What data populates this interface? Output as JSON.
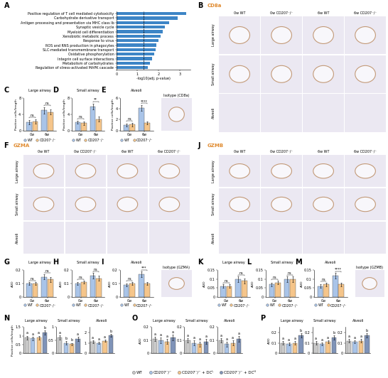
{
  "chart_data": [
    {
      "type": "bar",
      "panel": "A",
      "orientation": "horizontal",
      "categories": [
        "Positive regulation of T cell mediated cytotoxicity",
        "Carbohydrate derivative transport",
        "Antigen processing and presentation via MHC class Ib",
        "Synaptic vesicle cycle",
        "Myeloid cell differentiation",
        "Xenobiotic metabolic process",
        "Response to virus",
        "ROS and RNS production in phagocytes",
        "SLC-mediated transmembrane transport",
        "Oxidative phosphorylation",
        "Integrin cell surface interactions",
        "Metabolism of carbohydrates",
        "Regulation of stress-activated MAPK cascade"
      ],
      "values": [
        3.3,
        2.9,
        2.5,
        2.3,
        2.2,
        2.1,
        2.0,
        1.9,
        1.85,
        1.8,
        1.7,
        1.6,
        1.5
      ],
      "color": "#3d85c6",
      "x_label": "-log10(adj. p-value)",
      "xlim": [
        0,
        3.5
      ],
      "xticks": [
        0,
        1,
        2,
        3
      ],
      "reference_line": 1.3,
      "grid": false
    },
    {
      "type": "bar",
      "panel": "C",
      "title": "Large airway",
      "y_label": "Positive cells/length",
      "categories": [
        "0w",
        "6w"
      ],
      "series": [
        {
          "name": "WT",
          "color": "#a9c4e8",
          "values": [
            2.0,
            5.0
          ],
          "errors": [
            0.5,
            0.8
          ]
        },
        {
          "name": "CD207⁻/⁻",
          "color": "#f5c58a",
          "values": [
            2.2,
            4.6
          ],
          "errors": [
            0.6,
            0.7
          ]
        }
      ],
      "ylim": [
        0,
        8
      ],
      "yticks": [
        0,
        4,
        8
      ],
      "annotations": [
        "ns",
        "ns"
      ],
      "legend": "bottom",
      "grid": false
    },
    {
      "type": "bar",
      "panel": "D",
      "title": "Small airway",
      "y_label": "Positive cells/length",
      "categories": [
        "0w",
        "6w"
      ],
      "series": [
        {
          "name": "WT",
          "color": "#a9c4e8",
          "values": [
            2.0,
            6.0
          ],
          "errors": [
            0.4,
            0.7
          ]
        },
        {
          "name": "CD207⁻/⁻",
          "color": "#f5c58a",
          "values": [
            1.8,
            2.8
          ],
          "errors": [
            0.4,
            0.6
          ]
        }
      ],
      "ylim": [
        0,
        8
      ],
      "yticks": [
        0,
        4,
        8
      ],
      "annotations": [
        "ns",
        "**"
      ],
      "legend": "bottom",
      "grid": false
    },
    {
      "type": "bar",
      "panel": "E",
      "title": "Alveoli",
      "y_label": "Positive cells/length",
      "categories": [
        "0w",
        "6w"
      ],
      "series": [
        {
          "name": "WT",
          "color": "#a9c4e8",
          "values": [
            1.0,
            4.2
          ],
          "errors": [
            0.3,
            0.5
          ]
        },
        {
          "name": "CD207⁻/⁻",
          "color": "#f5c58a",
          "values": [
            1.1,
            1.4
          ],
          "errors": [
            0.3,
            0.3
          ]
        }
      ],
      "ylim": [
        0,
        6
      ],
      "yticks": [
        0,
        2,
        4,
        6
      ],
      "annotations": [
        "ns",
        "****"
      ],
      "legend": "bottom",
      "grid": false
    },
    {
      "type": "bar",
      "panel": "G",
      "title": "Large airway",
      "y_label": "AOD",
      "categories": [
        "0w",
        "6w"
      ],
      "series": [
        {
          "name": "WT",
          "color": "#a9c4e8",
          "values": [
            0.1,
            0.15
          ],
          "errors": [
            0.01,
            0.02
          ]
        },
        {
          "name": "CD207⁻/⁻",
          "color": "#f5c58a",
          "values": [
            0.1,
            0.13
          ],
          "errors": [
            0.01,
            0.02
          ]
        }
      ],
      "ylim": [
        0,
        0.2
      ],
      "yticks": [
        0,
        0.1,
        0.2
      ],
      "annotations": [
        "ns",
        "ns"
      ],
      "legend": "bottom",
      "grid": false
    },
    {
      "type": "bar",
      "panel": "H",
      "title": "Small airway",
      "y_label": "AOD",
      "categories": [
        "0w",
        "6w"
      ],
      "series": [
        {
          "name": "WT",
          "color": "#a9c4e8",
          "values": [
            0.1,
            0.16
          ],
          "errors": [
            0.01,
            0.02
          ]
        },
        {
          "name": "CD207⁻/⁻",
          "color": "#f5c58a",
          "values": [
            0.11,
            0.14
          ],
          "errors": [
            0.01,
            0.02
          ]
        }
      ],
      "ylim": [
        0,
        0.2
      ],
      "yticks": [
        0,
        0.1,
        0.2
      ],
      "annotations": [
        "ns",
        "ns"
      ],
      "legend": "bottom",
      "grid": false
    },
    {
      "type": "bar",
      "panel": "I",
      "title": "Alveoli",
      "y_label": "AOD",
      "categories": [
        "0w",
        "6w"
      ],
      "series": [
        {
          "name": "WT",
          "color": "#a9c4e8",
          "values": [
            0.09,
            0.17
          ],
          "errors": [
            0.01,
            0.02
          ]
        },
        {
          "name": "CD207⁻/⁻",
          "color": "#f5c58a",
          "values": [
            0.1,
            0.1
          ],
          "errors": [
            0.01,
            0.01
          ]
        }
      ],
      "ylim": [
        0,
        0.2
      ],
      "yticks": [
        0,
        0.1,
        0.2
      ],
      "annotations": [
        "ns",
        "***"
      ],
      "legend": "bottom",
      "grid": false
    },
    {
      "type": "bar",
      "panel": "K",
      "title": "Large airway",
      "y_label": "AOD",
      "categories": [
        "0w",
        "6w"
      ],
      "series": [
        {
          "name": "WT",
          "color": "#a9c4e8",
          "values": [
            0.06,
            0.1
          ],
          "errors": [
            0.01,
            0.015
          ]
        },
        {
          "name": "CD207⁻/⁻",
          "color": "#f5c58a",
          "values": [
            0.06,
            0.09
          ],
          "errors": [
            0.01,
            0.015
          ]
        }
      ],
      "ylim": [
        0,
        0.15
      ],
      "yticks": [
        0,
        0.05,
        0.1,
        0.15
      ],
      "annotations": [
        "ns",
        "ns"
      ],
      "legend": "bottom",
      "grid": false
    },
    {
      "type": "bar",
      "panel": "L",
      "title": "Small airway",
      "y_label": "AOD",
      "categories": [
        "0w",
        "6w"
      ],
      "series": [
        {
          "name": "WT",
          "color": "#a9c4e8",
          "values": [
            0.07,
            0.1
          ],
          "errors": [
            0.01,
            0.015
          ]
        },
        {
          "name": "CD207⁻/⁻",
          "color": "#f5c58a",
          "values": [
            0.08,
            0.1
          ],
          "errors": [
            0.01,
            0.015
          ]
        }
      ],
      "ylim": [
        0,
        0.15
      ],
      "yticks": [
        0,
        0.05,
        0.1,
        0.15
      ],
      "annotations": [
        "ns",
        "ns"
      ],
      "legend": "bottom",
      "grid": false
    },
    {
      "type": "bar",
      "panel": "M",
      "title": "Alveoli",
      "y_label": "AOD",
      "categories": [
        "0w",
        "6w"
      ],
      "series": [
        {
          "name": "WT",
          "color": "#a9c4e8",
          "values": [
            0.06,
            0.12
          ],
          "errors": [
            0.01,
            0.015
          ]
        },
        {
          "name": "CD207⁻/⁻",
          "color": "#f5c58a",
          "values": [
            0.07,
            0.07
          ],
          "errors": [
            0.01,
            0.01
          ]
        }
      ],
      "ylim": [
        0,
        0.15
      ],
      "yticks": [
        0,
        0.05,
        0.1,
        0.15
      ],
      "annotations": [
        "ns",
        "****"
      ],
      "legend": "bottom",
      "grid": false
    },
    {
      "type": "bar",
      "panel": "N",
      "title": "Large airway",
      "y_label": "Positive cells/length",
      "tick_labels": "y",
      "series": [
        {
          "name": "WT",
          "color": "#c8c8c8",
          "values": [
            0.9
          ],
          "errors": [
            0.1
          ]
        },
        {
          "name": "CD207⁻/⁻",
          "color": "#a9c4e8",
          "values": [
            0.85
          ],
          "errors": [
            0.1
          ]
        },
        {
          "name": "CD207⁻/⁻ + DCᴸ",
          "color": "#f5c58a",
          "values": [
            0.9
          ],
          "errors": [
            0.1
          ]
        },
        {
          "name": "CD207⁻/⁻ + DCᴴ",
          "color": "#7f93b8",
          "values": [
            1.2
          ],
          "errors": [
            0.12
          ]
        }
      ],
      "ylim": [
        0,
        1.5
      ],
      "yticks": [
        0,
        0.5,
        1,
        1.5
      ],
      "annotations": [
        "a",
        "a",
        "a",
        "b"
      ],
      "legend": "bottom",
      "grid": false
    },
    {
      "type": "bar",
      "title": "Small airway",
      "tick_labels": "y",
      "series": [
        {
          "name": "WT",
          "color": "#c8c8c8",
          "values": [
            0.6
          ],
          "errors": [
            0.08
          ]
        },
        {
          "name": "CD207⁻/⁻",
          "color": "#a9c4e8",
          "values": [
            0.4
          ],
          "errors": [
            0.06
          ]
        },
        {
          "name": "CD207⁻/⁻ + DCᴸ",
          "color": "#f5c58a",
          "values": [
            0.35
          ],
          "errors": [
            0.05
          ]
        },
        {
          "name": "CD207⁻/⁻ + DCᴴ",
          "color": "#7f93b8",
          "values": [
            0.55
          ],
          "errors": [
            0.08
          ]
        }
      ],
      "ylim": [
        0,
        1
      ],
      "yticks": [
        0,
        0.5,
        1
      ],
      "annotations": [
        "a",
        "b",
        "b",
        "a"
      ],
      "grid": false
    },
    {
      "type": "bar",
      "title": "Alveoli",
      "tick_labels": "y",
      "series": [
        {
          "name": "WT",
          "color": "#c8c8c8",
          "values": [
            1.1
          ],
          "errors": [
            0.12
          ]
        },
        {
          "name": "CD207⁻/⁻",
          "color": "#a9c4e8",
          "values": [
            1.0
          ],
          "errors": [
            0.1
          ]
        },
        {
          "name": "CD207⁻/⁻ + DCᴸ",
          "color": "#f5c58a",
          "values": [
            1.2
          ],
          "errors": [
            0.12
          ]
        },
        {
          "name": "CD207⁻/⁻ + DCᴴ",
          "color": "#7f93b8",
          "values": [
            1.7
          ],
          "errors": [
            0.15
          ]
        }
      ],
      "ylim": [
        0,
        2.5
      ],
      "yticks": [
        0,
        1,
        2
      ],
      "annotations": [
        "a",
        "a",
        "a",
        "b"
      ],
      "grid": false
    },
    {
      "type": "bar",
      "panel": "O",
      "title": "Large airway",
      "y_label": "AOD",
      "tick_labels": "y",
      "series": [
        {
          "name": "WT",
          "color": "#c8c8c8",
          "values": [
            0.11
          ],
          "errors": [
            0.015
          ]
        },
        {
          "name": "CD207⁻/⁻",
          "color": "#a9c4e8",
          "values": [
            0.1
          ],
          "errors": [
            0.02
          ]
        },
        {
          "name": "CD207⁻/⁻ + DCᴸ",
          "color": "#f5c58a",
          "values": [
            0.09
          ],
          "errors": [
            0.02
          ]
        },
        {
          "name": "CD207⁻/⁻ + DCᴴ",
          "color": "#7f93b8",
          "values": [
            0.12
          ],
          "errors": [
            0.02
          ]
        }
      ],
      "ylim": [
        0,
        0.2
      ],
      "yticks": [
        0,
        0.1,
        0.2
      ],
      "annotations": [
        "a",
        "a",
        "a",
        "a"
      ],
      "grid": false
    },
    {
      "type": "bar",
      "title": "Small airway",
      "tick_labels": "y",
      "series": [
        {
          "name": "WT",
          "color": "#c8c8c8",
          "values": [
            0.1
          ],
          "errors": [
            0.015
          ]
        },
        {
          "name": "CD207⁻/⁻",
          "color": "#a9c4e8",
          "values": [
            0.08
          ],
          "errors": [
            0.02
          ]
        },
        {
          "name": "CD207⁻/⁻ + DCᴸ",
          "color": "#f5c58a",
          "values": [
            0.07
          ],
          "errors": [
            0.02
          ]
        },
        {
          "name": "CD207⁻/⁻ + DCᴴ",
          "color": "#7f93b8",
          "values": [
            0.09
          ],
          "errors": [
            0.02
          ]
        }
      ],
      "ylim": [
        0,
        0.2
      ],
      "yticks": [
        0,
        0.1,
        0.2
      ],
      "annotations": [
        "a",
        "a",
        "a",
        "a"
      ],
      "grid": false
    },
    {
      "type": "bar",
      "title": "Alveoli",
      "tick_labels": "y",
      "series": [
        {
          "name": "WT",
          "color": "#c8c8c8",
          "values": [
            0.1
          ],
          "errors": [
            0.015
          ]
        },
        {
          "name": "CD207⁻/⁻",
          "color": "#a9c4e8",
          "values": [
            0.07
          ],
          "errors": [
            0.02
          ]
        },
        {
          "name": "CD207⁻/⁻ + DCᴸ",
          "color": "#f5c58a",
          "values": [
            0.08
          ],
          "errors": [
            0.02
          ]
        },
        {
          "name": "CD207⁻/⁻ + DCᴴ",
          "color": "#7f93b8",
          "values": [
            0.11
          ],
          "errors": [
            0.02
          ]
        }
      ],
      "ylim": [
        0,
        0.2
      ],
      "yticks": [
        0,
        0.1,
        0.2
      ],
      "annotations": [
        "a",
        "a",
        "a",
        "a"
      ],
      "grid": false
    },
    {
      "type": "bar",
      "panel": "P",
      "title": "Large airway",
      "y_label": "AOD",
      "tick_labels": "y",
      "series": [
        {
          "name": "WT",
          "color": "#c8c8c8",
          "values": [
            0.1
          ],
          "errors": [
            0.015
          ]
        },
        {
          "name": "CD207⁻/⁻",
          "color": "#a9c4e8",
          "values": [
            0.09
          ],
          "errors": [
            0.015
          ]
        },
        {
          "name": "CD207⁻/⁻ + DCᴸ",
          "color": "#f5c58a",
          "values": [
            0.1
          ],
          "errors": [
            0.015
          ]
        },
        {
          "name": "CD207⁻/⁻ + DCᴴ",
          "color": "#7f93b8",
          "values": [
            0.17
          ],
          "errors": [
            0.02
          ]
        }
      ],
      "ylim": [
        0,
        0.25
      ],
      "yticks": [
        0,
        0.1,
        0.2
      ],
      "annotations": [
        "a",
        "a",
        "a",
        "b"
      ],
      "grid": false
    },
    {
      "type": "bar",
      "title": "Small airway",
      "tick_labels": "y",
      "series": [
        {
          "name": "WT",
          "color": "#c8c8c8",
          "values": [
            0.1
          ],
          "errors": [
            0.015
          ]
        },
        {
          "name": "CD207⁻/⁻",
          "color": "#a9c4e8",
          "values": [
            0.09
          ],
          "errors": [
            0.015
          ]
        },
        {
          "name": "CD207⁻/⁻ + DCᴸ",
          "color": "#f5c58a",
          "values": [
            0.11
          ],
          "errors": [
            0.015
          ]
        },
        {
          "name": "CD207⁻/⁻ + DCᴴ",
          "color": "#7f93b8",
          "values": [
            0.15
          ],
          "errors": [
            0.02
          ]
        }
      ],
      "ylim": [
        0,
        0.25
      ],
      "yticks": [
        0,
        0.1,
        0.2
      ],
      "annotations": [
        "a",
        "a",
        "a",
        "b"
      ],
      "grid": false
    },
    {
      "type": "bar",
      "title": "Alveoli",
      "tick_labels": "y",
      "series": [
        {
          "name": "WT",
          "color": "#c8c8c8",
          "values": [
            0.12
          ],
          "errors": [
            0.015
          ]
        },
        {
          "name": "CD207⁻/⁻",
          "color": "#a9c4e8",
          "values": [
            0.11
          ],
          "errors": [
            0.015
          ]
        },
        {
          "name": "CD207⁻/⁻ + DCᴸ",
          "color": "#f5c58a",
          "values": [
            0.12
          ],
          "errors": [
            0.015
          ]
        },
        {
          "name": "CD207⁻/⁻ + DCᴴ",
          "color": "#7f93b8",
          "values": [
            0.17
          ],
          "errors": [
            0.02
          ]
        }
      ],
      "ylim": [
        0,
        0.25
      ],
      "yticks": [
        0,
        0.1,
        0.2
      ],
      "annotations": [
        "a",
        "a",
        "a",
        "b"
      ],
      "grid": false
    }
  ],
  "image_panels": [
    {
      "panel": "B",
      "stain": "CD8a",
      "color": "#e08a2e",
      "columns": [
        "0w WT",
        "0w CD207⁻/⁻",
        "6w WT",
        "6w CD207⁻/⁻"
      ],
      "rows": [
        "Large airway",
        "Small airway",
        "Alveoli"
      ],
      "isotype": "Isotype (CD8a)"
    },
    {
      "panel": "F",
      "stain": "GZMA",
      "color": "#e08a2e",
      "columns": [
        "0w WT",
        "0w CD207⁻/⁻",
        "6w WT",
        "6w CD207⁻/⁻"
      ],
      "rows": [
        "Large airway",
        "Small airway",
        "Alveoli"
      ],
      "isotype": "Isotype (GZMA)"
    },
    {
      "panel": "J",
      "stain": "GZMB",
      "color": "#e08a2e",
      "columns": [
        "0w WT",
        "0w CD207⁻/⁻",
        "6w WT",
        "6w CD207⁻/⁻"
      ],
      "rows": [
        "Large airway",
        "Small airway",
        "Alveoli"
      ],
      "isotype": "Isotype (GZMB)"
    }
  ]
}
